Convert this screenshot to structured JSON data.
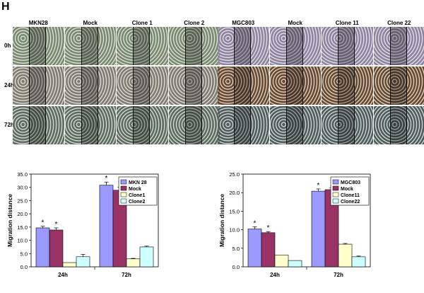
{
  "figure": {
    "panel_label": "H",
    "left_group": {
      "columns": [
        "MKN28",
        "Mock",
        "Clone 1",
        "Clone 2"
      ],
      "rows": [
        "0h",
        "24h",
        "72h"
      ],
      "tones": {
        "0h": "#7a8a6f",
        "24h": "#7e7d72",
        "72h": "#5d6c5e"
      }
    },
    "right_group": {
      "columns": [
        "MGC803",
        "Mock",
        "Clone 11",
        "Clone 22"
      ],
      "rows": [
        "0h",
        "24h",
        "72h"
      ],
      "tones": {
        "0h": "#8e84a0",
        "24h": "#6a4a2e",
        "72h": "#4e5c5a"
      }
    }
  },
  "chart_data": [
    {
      "type": "bar",
      "categories": [
        "24h",
        "72h"
      ],
      "ylabel": "Migration distance",
      "ylim": [
        0,
        35
      ],
      "yticks": [
        "0.0",
        "5.0",
        "10.0",
        "15.0",
        "20.0",
        "25.0",
        "30.0",
        "35.0"
      ],
      "series": [
        {
          "name": "MKN 28",
          "color": "#9999ff",
          "values": [
            14.7,
            30.8
          ],
          "errors": [
            0.6,
            1.2
          ],
          "star": [
            true,
            true
          ]
        },
        {
          "name": "Mock",
          "color": "#993366",
          "values": [
            13.9,
            28.9
          ],
          "errors": [
            0.8,
            1.2
          ],
          "star": [
            true,
            true
          ]
        },
        {
          "name": "Clone1",
          "color": "#ffffcc",
          "values": [
            1.6,
            3.0
          ],
          "errors": [
            0.0,
            0.2
          ],
          "star": [
            false,
            false
          ]
        },
        {
          "name": "Clone2",
          "color": "#ccffff",
          "values": [
            3.8,
            7.5
          ],
          "errors": [
            0.9,
            0.3
          ],
          "star": [
            false,
            false
          ]
        }
      ],
      "star_text": "*"
    },
    {
      "type": "bar",
      "categories": [
        "24h",
        "72h"
      ],
      "ylabel": "Migration distance",
      "ylim": [
        0,
        25
      ],
      "yticks": [
        "0.0",
        "5.0",
        "10.0",
        "15.0",
        "20.0",
        "25.0"
      ],
      "series": [
        {
          "name": "MGC803",
          "color": "#9999ff",
          "values": [
            10.2,
            20.4
          ],
          "errors": [
            0.6,
            0.6
          ],
          "star": [
            true,
            true
          ]
        },
        {
          "name": "Mock",
          "color": "#993366",
          "values": [
            9.2,
            20.8
          ],
          "errors": [
            0.3,
            0.5
          ],
          "star": [
            true,
            true
          ]
        },
        {
          "name": "Clone11",
          "color": "#ffffcc",
          "values": [
            3.2,
            6.1
          ],
          "errors": [
            0.0,
            0.2
          ],
          "star": [
            false,
            false
          ]
        },
        {
          "name": "Clone22",
          "color": "#ccffff",
          "values": [
            1.7,
            2.7
          ],
          "errors": [
            0.0,
            0.2
          ],
          "star": [
            false,
            false
          ]
        }
      ],
      "star_text": "*"
    }
  ]
}
